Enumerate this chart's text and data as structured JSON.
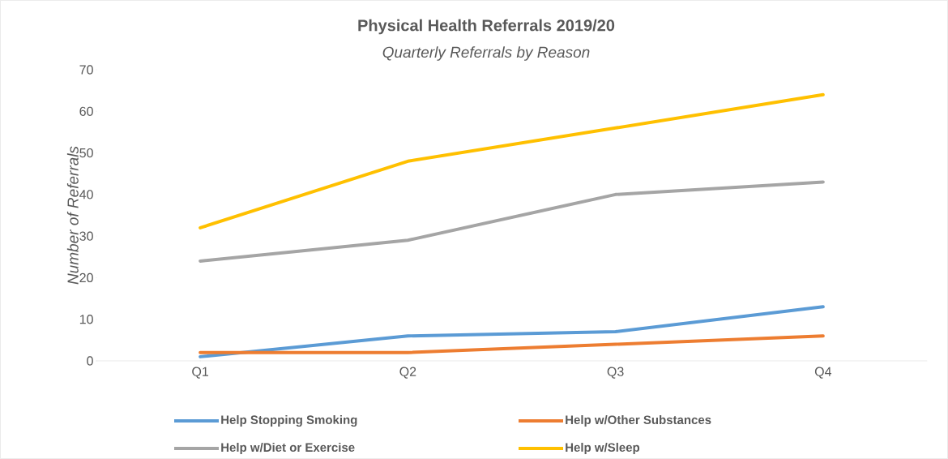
{
  "chart_data": {
    "type": "line",
    "title": "Physical Health Referrals 2019/20",
    "subtitle": "Quarterly Referrals by Reason",
    "ylabel": "Number of Referrals",
    "categories": [
      "Q1",
      "Q2",
      "Q3",
      "Q4"
    ],
    "series": [
      {
        "name": "Help Stopping Smoking",
        "color": "#5b9bd5",
        "values": [
          1,
          6,
          7,
          13
        ]
      },
      {
        "name": "Help w/Other Substances",
        "color": "#ed7d31",
        "values": [
          2,
          2,
          4,
          6
        ]
      },
      {
        "name": "Help w/Diet or Exercise",
        "color": "#a5a5a5",
        "values": [
          24,
          29,
          40,
          43
        ]
      },
      {
        "name": "Help w/Sleep",
        "color": "#ffc000",
        "values": [
          32,
          48,
          56,
          64
        ]
      }
    ],
    "ylim": [
      0,
      70
    ],
    "yticks": [
      0,
      10,
      20,
      30,
      40,
      50,
      60,
      70
    ],
    "legend": "bottom",
    "marker": "none",
    "line_style": "solid"
  }
}
